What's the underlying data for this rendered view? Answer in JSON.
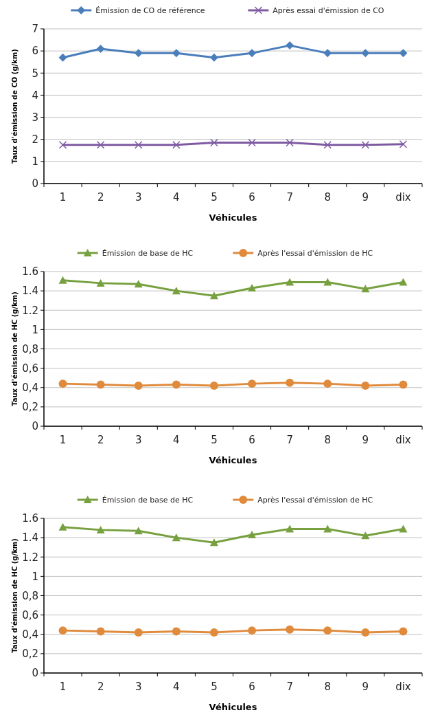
{
  "chart_data": [
    {
      "type": "line",
      "xlabel": "Véhicules",
      "ylabel": "Taux d'émission de CO (g/km)",
      "categories": [
        "1",
        "2",
        "3",
        "4",
        "5",
        "6",
        "7",
        "8",
        "9",
        "dix"
      ],
      "ylim": [
        0,
        7
      ],
      "yticks": [
        0,
        1,
        2,
        3,
        4,
        5,
        6,
        7
      ],
      "grid": "y",
      "legend": "top",
      "line_style": "solid",
      "series": [
        {
          "name": "Émission de CO de référence",
          "color": "#4a7ebb",
          "marker": "diamond",
          "values": [
            5.7,
            6.1,
            5.9,
            5.9,
            5.7,
            5.9,
            6.25,
            5.9,
            5.9,
            5.9
          ]
        },
        {
          "name": "Après essai d'émission de CO",
          "color": "#7e5aa2",
          "marker": "cross",
          "values": [
            1.75,
            1.75,
            1.75,
            1.75,
            1.85,
            1.85,
            1.85,
            1.75,
            1.75,
            1.78
          ]
        }
      ]
    },
    {
      "type": "line",
      "xlabel": "Véhicules",
      "ylabel": "Taux d'émission de HC (g/km)",
      "categories": [
        "1",
        "2",
        "3",
        "4",
        "5",
        "6",
        "7",
        "8",
        "9",
        "dix"
      ],
      "ylim": [
        0,
        1.6
      ],
      "yticks": [
        0,
        {
          "value": 0.2,
          "label": "0,2"
        },
        {
          "value": 0.4,
          "label": "0,4"
        },
        {
          "value": 0.6,
          "label": "0,6"
        },
        {
          "value": 0.8,
          "label": "0,8"
        },
        1,
        1.2,
        1.4,
        1.6
      ],
      "grid": "y",
      "legend": "top",
      "line_style": "solid",
      "series": [
        {
          "name": "Émission de base de HC",
          "color": "#77a03f",
          "marker": "triangle",
          "values": [
            1.51,
            1.48,
            1.47,
            1.4,
            1.35,
            1.43,
            1.49,
            1.49,
            1.42,
            1.49
          ]
        },
        {
          "name": "Après l'essai d'émission de HC",
          "color": "#e08a3c",
          "marker": "circle",
          "values": [
            0.44,
            0.43,
            0.42,
            0.43,
            0.42,
            0.44,
            0.45,
            0.44,
            0.42,
            0.43
          ]
        }
      ]
    },
    {
      "type": "line",
      "xlabel": "Véhicules",
      "ylabel": "Taux d'émission de HC (g/km)",
      "categories": [
        "1",
        "2",
        "3",
        "4",
        "5",
        "6",
        "7",
        "8",
        "9",
        "dix"
      ],
      "ylim": [
        0,
        1.6
      ],
      "yticks": [
        0,
        {
          "value": 0.2,
          "label": "0,2"
        },
        {
          "value": 0.4,
          "label": "0,4"
        },
        {
          "value": 0.6,
          "label": "0,6"
        },
        {
          "value": 0.8,
          "label": "0,8"
        },
        1,
        1.2,
        1.4,
        1.6
      ],
      "grid": "y",
      "legend": "top",
      "line_style": "solid",
      "series": [
        {
          "name": "Émission de base de HC",
          "color": "#77a03f",
          "marker": "triangle",
          "values": [
            1.51,
            1.48,
            1.47,
            1.4,
            1.35,
            1.43,
            1.49,
            1.49,
            1.42,
            1.49
          ]
        },
        {
          "name": "Après l'essai d'émission de HC",
          "color": "#e08a3c",
          "marker": "circle",
          "values": [
            0.44,
            0.43,
            0.42,
            0.43,
            0.42,
            0.44,
            0.45,
            0.44,
            0.42,
            0.43
          ]
        }
      ]
    }
  ]
}
